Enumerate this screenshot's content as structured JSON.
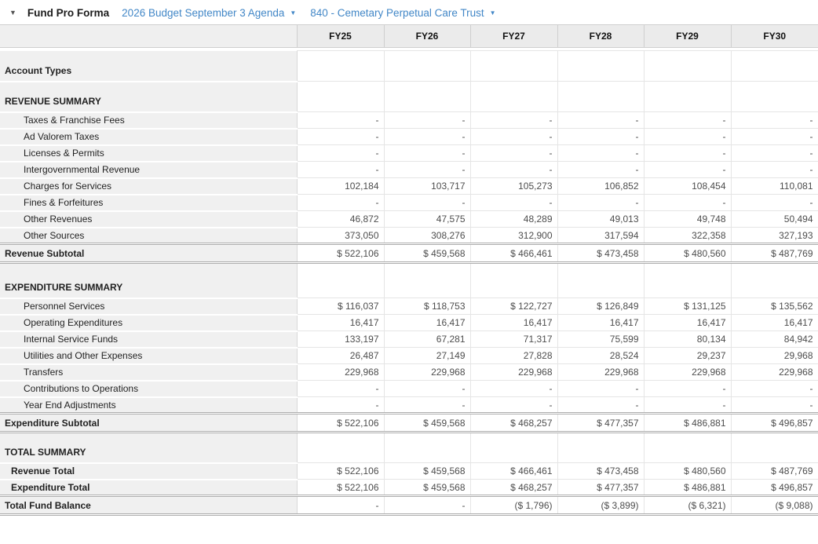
{
  "header": {
    "collapse_icon": "▼",
    "title": "Fund Pro Forma",
    "budget_selector": {
      "label": "2026 Budget September 3 Agenda",
      "caret": "▼"
    },
    "fund_selector": {
      "label": "840 - Cemetary Perpetual Care Trust",
      "caret": "▼"
    }
  },
  "colors": {
    "link_blue": "#4287c7",
    "label_cell_bg": "#f0f0f0",
    "header_row_bg": "#ebebeb"
  },
  "table": {
    "columns": [
      "FY25",
      "FY26",
      "FY27",
      "FY28",
      "FY29",
      "FY30"
    ],
    "rows": [
      {
        "type": "tall",
        "label": "Account Types",
        "values": [
          "",
          "",
          "",
          "",
          "",
          ""
        ]
      },
      {
        "type": "tall",
        "label": "REVENUE SUMMARY",
        "values": [
          "",
          "",
          "",
          "",
          "",
          ""
        ]
      },
      {
        "type": "detail",
        "label": "Taxes & Franchise Fees",
        "values": [
          "-",
          "-",
          "-",
          "-",
          "-",
          "-"
        ]
      },
      {
        "type": "detail",
        "label": "Ad Valorem Taxes",
        "values": [
          "-",
          "-",
          "-",
          "-",
          "-",
          "-"
        ]
      },
      {
        "type": "detail",
        "label": "Licenses & Permits",
        "values": [
          "-",
          "-",
          "-",
          "-",
          "-",
          "-"
        ]
      },
      {
        "type": "detail",
        "label": "Intergovernmental Revenue",
        "values": [
          "-",
          "-",
          "-",
          "-",
          "-",
          "-"
        ]
      },
      {
        "type": "detail",
        "label": "Charges for Services",
        "values": [
          "102,184",
          "103,717",
          "105,273",
          "106,852",
          "108,454",
          "110,081"
        ]
      },
      {
        "type": "detail",
        "label": "Fines & Forfeitures",
        "values": [
          "-",
          "-",
          "-",
          "-",
          "-",
          "-"
        ]
      },
      {
        "type": "detail",
        "label": "Other Revenues",
        "values": [
          "46,872",
          "47,575",
          "48,289",
          "49,013",
          "49,748",
          "50,494"
        ]
      },
      {
        "type": "detail",
        "label": "Other Sources",
        "values": [
          "373,050",
          "308,276",
          "312,900",
          "317,594",
          "322,358",
          "327,193"
        ]
      },
      {
        "type": "subtotal",
        "label": "Revenue Subtotal",
        "values": [
          "$ 522,106",
          "$ 459,568",
          "$ 466,461",
          "$ 473,458",
          "$ 480,560",
          "$ 487,769"
        ]
      },
      {
        "type": "tall taller",
        "label": "EXPENDITURE SUMMARY",
        "values": [
          "",
          "",
          "",
          "",
          "",
          ""
        ]
      },
      {
        "type": "detail",
        "label": "Personnel Services",
        "values": [
          "$ 116,037",
          "$ 118,753",
          "$ 122,727",
          "$ 126,849",
          "$ 131,125",
          "$ 135,562"
        ]
      },
      {
        "type": "detail",
        "label": "Operating Expenditures",
        "values": [
          "16,417",
          "16,417",
          "16,417",
          "16,417",
          "16,417",
          "16,417"
        ]
      },
      {
        "type": "detail",
        "label": "Internal Service Funds",
        "values": [
          "133,197",
          "67,281",
          "71,317",
          "75,599",
          "80,134",
          "84,942"
        ]
      },
      {
        "type": "detail",
        "label": "Utilities and Other Expenses",
        "values": [
          "26,487",
          "27,149",
          "27,828",
          "28,524",
          "29,237",
          "29,968"
        ]
      },
      {
        "type": "detail",
        "label": "Transfers",
        "values": [
          "229,968",
          "229,968",
          "229,968",
          "229,968",
          "229,968",
          "229,968"
        ]
      },
      {
        "type": "detail",
        "label": "Contributions to Operations",
        "values": [
          "-",
          "-",
          "-",
          "-",
          "-",
          "-"
        ]
      },
      {
        "type": "detail",
        "label": "Year End Adjustments",
        "values": [
          "-",
          "-",
          "-",
          "-",
          "-",
          "-"
        ]
      },
      {
        "type": "subtotal",
        "label": "Expenditure Subtotal",
        "values": [
          "$ 522,106",
          "$ 459,568",
          "$ 468,257",
          "$ 477,357",
          "$ 486,881",
          "$ 496,857"
        ]
      },
      {
        "type": "tall",
        "label": "TOTAL SUMMARY",
        "values": [
          "",
          "",
          "",
          "",
          "",
          ""
        ]
      },
      {
        "type": "total",
        "label": "Revenue Total",
        "values": [
          "$ 522,106",
          "$ 459,568",
          "$ 466,461",
          "$ 473,458",
          "$ 480,560",
          "$ 487,769"
        ]
      },
      {
        "type": "total",
        "label": "Expenditure Total",
        "values": [
          "$ 522,106",
          "$ 459,568",
          "$ 468,257",
          "$ 477,357",
          "$ 486,881",
          "$ 496,857"
        ]
      },
      {
        "type": "grand",
        "label": "Total Fund Balance",
        "values": [
          "-",
          "-",
          "($ 1,796)",
          "($ 3,899)",
          "($ 6,321)",
          "($ 9,088)"
        ]
      }
    ]
  }
}
